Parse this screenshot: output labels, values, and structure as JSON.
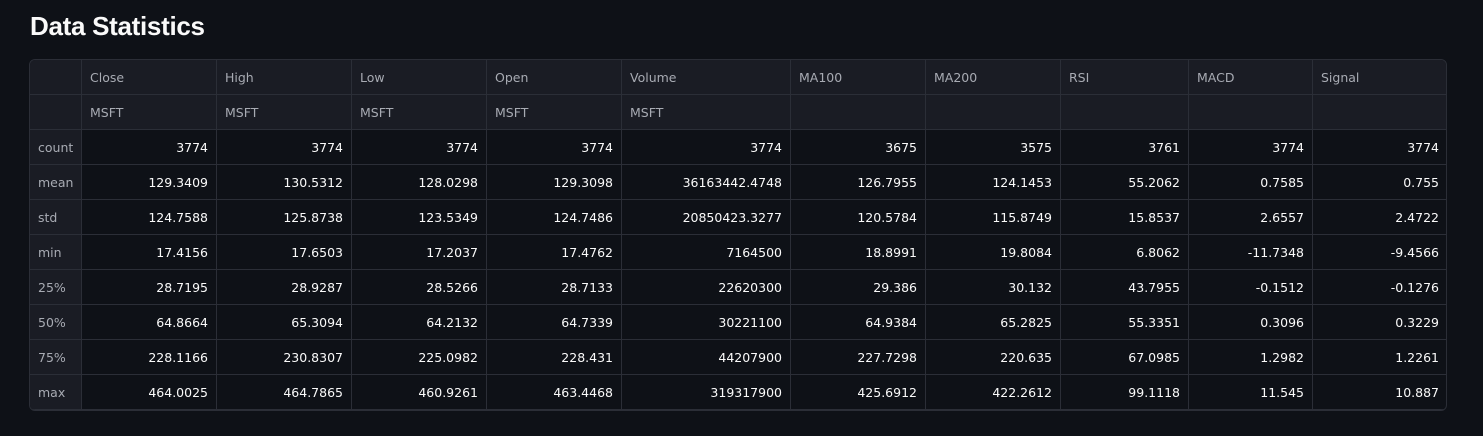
{
  "title": "Data Statistics",
  "table": {
    "columns": [
      "Close",
      "High",
      "Low",
      "Open",
      "Volume",
      "MA100",
      "MA200",
      "RSI",
      "MACD",
      "Signal"
    ],
    "subheaders": [
      "MSFT",
      "MSFT",
      "MSFT",
      "MSFT",
      "MSFT",
      "",
      "",
      "",
      "",
      ""
    ],
    "rows": [
      {
        "label": "count",
        "values": [
          "3774",
          "3774",
          "3774",
          "3774",
          "3774",
          "3675",
          "3575",
          "3761",
          "3774",
          "3774"
        ]
      },
      {
        "label": "mean",
        "values": [
          "129.3409",
          "130.5312",
          "128.0298",
          "129.3098",
          "36163442.4748",
          "126.7955",
          "124.1453",
          "55.2062",
          "0.7585",
          "0.755"
        ]
      },
      {
        "label": "std",
        "values": [
          "124.7588",
          "125.8738",
          "123.5349",
          "124.7486",
          "20850423.3277",
          "120.5784",
          "115.8749",
          "15.8537",
          "2.6557",
          "2.4722"
        ]
      },
      {
        "label": "min",
        "values": [
          "17.4156",
          "17.6503",
          "17.2037",
          "17.4762",
          "7164500",
          "18.8991",
          "19.8084",
          "6.8062",
          "-11.7348",
          "-9.4566"
        ]
      },
      {
        "label": "25%",
        "values": [
          "28.7195",
          "28.9287",
          "28.5266",
          "28.7133",
          "22620300",
          "29.386",
          "30.132",
          "43.7955",
          "-0.1512",
          "-0.1276"
        ]
      },
      {
        "label": "50%",
        "values": [
          "64.8664",
          "65.3094",
          "64.2132",
          "64.7339",
          "30221100",
          "64.9384",
          "65.2825",
          "55.3351",
          "0.3096",
          "0.3229"
        ]
      },
      {
        "label": "75%",
        "values": [
          "228.1166",
          "230.8307",
          "225.0982",
          "228.431",
          "44207900",
          "227.7298",
          "220.635",
          "67.0985",
          "1.2982",
          "1.2261"
        ]
      },
      {
        "label": "max",
        "values": [
          "464.0025",
          "464.7865",
          "460.9261",
          "463.4468",
          "319317900",
          "425.6912",
          "422.2612",
          "99.1118",
          "11.545",
          "10.887"
        ]
      }
    ]
  }
}
